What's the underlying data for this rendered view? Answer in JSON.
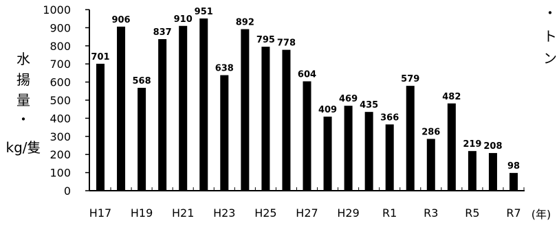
{
  "chart_data": {
    "type": "bar",
    "categories": [
      "H17",
      "H18",
      "H19",
      "H20",
      "H21",
      "H22",
      "H23",
      "H24",
      "H25",
      "H26",
      "H27",
      "H28",
      "H29",
      "H30",
      "R1",
      "R2",
      "R3",
      "R4",
      "R5",
      "R6",
      "R7"
    ],
    "values": [
      701,
      906,
      568,
      837,
      910,
      951,
      638,
      892,
      795,
      778,
      604,
      409,
      469,
      435,
      366,
      579,
      286,
      482,
      219,
      208,
      98
    ],
    "x_tick_labels": [
      "H17",
      "H19",
      "H21",
      "H23",
      "H25",
      "H27",
      "H29",
      "R1",
      "R3",
      "R5",
      "R7"
    ],
    "y_ticks": [
      0,
      100,
      200,
      300,
      400,
      500,
      600,
      700,
      800,
      900,
      1000
    ],
    "ylim": [
      0,
      1000
    ],
    "y_label_left": "水揚量・kg/隻",
    "y_label_right": "・トン",
    "x_unit_label": "(年)",
    "bar_color": "#000000",
    "grid": false,
    "legend": "none"
  }
}
